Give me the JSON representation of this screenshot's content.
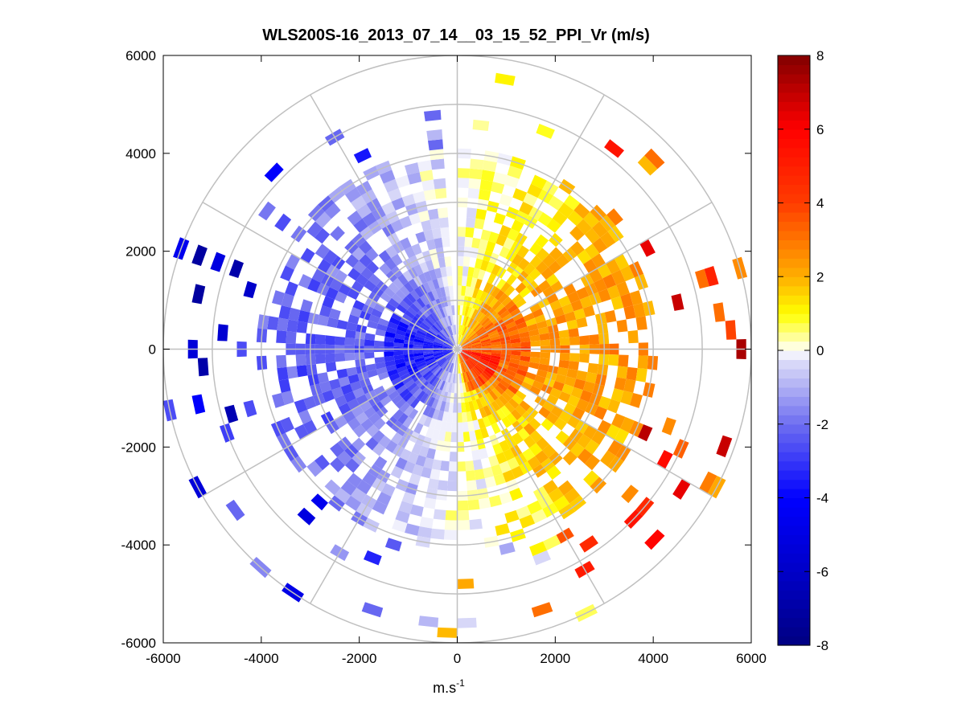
{
  "chart_data": {
    "type": "heatmap",
    "subtype": "polar-ppi",
    "title": "WLS200S-16_2013_07_14__03_15_52_PPI_Vr (m/s)",
    "xlabel_base": "m.s",
    "xlabel_exp": "-1",
    "ylabel": "",
    "xlim": [
      -6000,
      6000
    ],
    "ylim": [
      -6000,
      6000
    ],
    "x_ticks": [
      -6000,
      -4000,
      -2000,
      0,
      2000,
      4000,
      6000
    ],
    "y_ticks": [
      6000,
      4000,
      2000,
      0,
      -2000,
      -4000,
      -6000
    ],
    "x_tick_labels": [
      "-6000",
      "-4000",
      "-2000",
      "0",
      "2000",
      "4000",
      "6000"
    ],
    "y_tick_labels": [
      "6000",
      "4000",
      "2000",
      "0",
      "-2000",
      "-4000",
      "-6000"
    ],
    "polar_rings": [
      1000,
      2000,
      3000,
      4000,
      5000,
      6000
    ],
    "polar_spoke_step_deg": 30,
    "data_extent": {
      "dense_max_range": 4100,
      "sparse_max_range": 6000,
      "gate_spacing": 200,
      "azimuth_step_deg": 4,
      "gap_azimuth_from_north_deg": [
        -6,
        0
      ]
    },
    "pattern": "Negative (blue) radial velocity on the western half, positive (yellow/orange) on the eastern half; strongest positive values near the center to the southeast; sparse strong outliers beyond 4000 m",
    "colorbar": {
      "min": -8,
      "max": 8,
      "ticks": [
        8,
        6,
        4,
        2,
        0,
        -2,
        -4,
        -6,
        -8
      ],
      "tick_labels": [
        "8",
        "6",
        "4",
        "2",
        "0",
        "-2",
        "-4",
        "-6",
        "-8"
      ],
      "levels": 64,
      "colormap": "blue-white-yellow-red"
    },
    "grid": true
  }
}
